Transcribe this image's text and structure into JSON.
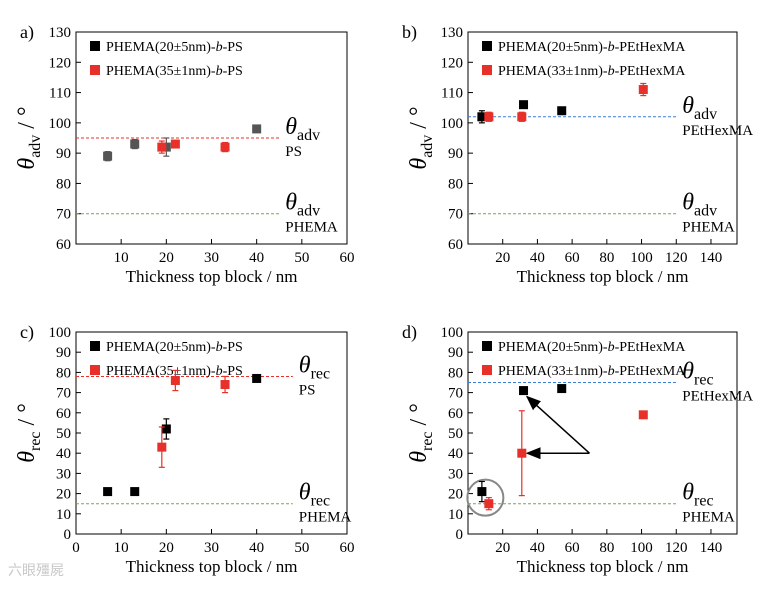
{
  "figure": {
    "watermark": "六眼殭屍"
  },
  "chart_data": [
    {
      "id": "a",
      "panel_label": "a)",
      "type": "scatter",
      "ylabel_symbol": "θ",
      "ylabel_sub": "adv",
      "ylabel_unit": "/ °",
      "xlabel": "Thickness top block / nm",
      "xlim": [
        0,
        60
      ],
      "ylim": [
        60,
        130
      ],
      "xticks": [
        10,
        20,
        30,
        40,
        50,
        60
      ],
      "yticks": [
        60,
        70,
        80,
        90,
        100,
        110,
        120,
        130
      ],
      "legend": [
        {
          "label_pre": "PHEMA(20±5nm)-",
          "label_ital": "b",
          "label_post": "-PS",
          "color": "#000000"
        },
        {
          "label_pre": "PHEMA(35±1nm)-",
          "label_ital": "b",
          "label_post": "-PS",
          "color": "#e8302a"
        }
      ],
      "series": [
        {
          "name": "PHEMA(20±5nm)-b-PS",
          "color": "#555555",
          "points": [
            {
              "x": 7,
              "y": 89,
              "err": 1.5
            },
            {
              "x": 13,
              "y": 93,
              "err": 1.5
            },
            {
              "x": 20,
              "y": 92,
              "err": 3
            },
            {
              "x": 40,
              "y": 98,
              "err": 0.8
            }
          ]
        },
        {
          "name": "PHEMA(35±1nm)-b-PS",
          "color": "#e8302a",
          "points": [
            {
              "x": 19,
              "y": 92,
              "err": 2
            },
            {
              "x": 22,
              "y": 93,
              "err": 1
            },
            {
              "x": 33,
              "y": 92,
              "err": 1.5
            }
          ]
        }
      ],
      "reference_lines": [
        {
          "y": 95,
          "color": "#e8302a",
          "x_end": 45,
          "label_symbol": "θ",
          "label_sub": "adv",
          "label_name": "PS"
        },
        {
          "y": 70,
          "color": "#6ab04c",
          "x_end": 45,
          "label_symbol": "θ",
          "label_sub": "adv",
          "label_name": "PHEMA"
        }
      ]
    },
    {
      "id": "b",
      "panel_label": "b)",
      "type": "scatter",
      "ylabel_symbol": "θ",
      "ylabel_sub": "adv",
      "ylabel_unit": "/ °",
      "xlabel": "Thickness top block / nm",
      "xlim": [
        0,
        155
      ],
      "ylim": [
        60,
        130
      ],
      "xticks": [
        20,
        40,
        60,
        80,
        100,
        120,
        140
      ],
      "yticks": [
        60,
        70,
        80,
        90,
        100,
        110,
        120,
        130
      ],
      "legend": [
        {
          "label_pre": "PHEMA(20±5nm)-",
          "label_ital": "b",
          "label_post": "-PEtHexMA",
          "color": "#000000"
        },
        {
          "label_pre": "PHEMA(33±1nm)-",
          "label_ital": "b",
          "label_post": "-PEtHexMA",
          "color": "#e8302a"
        }
      ],
      "series": [
        {
          "name": "PHEMA(20±5nm)-b-PEtHexMA",
          "color": "#000000",
          "points": [
            {
              "x": 8,
              "y": 102,
              "err": 2
            },
            {
              "x": 32,
              "y": 106,
              "err": 0
            },
            {
              "x": 54,
              "y": 104,
              "err": 0
            }
          ]
        },
        {
          "name": "PHEMA(33±1nm)-b-PEtHexMA",
          "color": "#e8302a",
          "points": [
            {
              "x": 12,
              "y": 102,
              "err": 1.5
            },
            {
              "x": 31,
              "y": 102,
              "err": 1.5
            },
            {
              "x": 101,
              "y": 111,
              "err": 2
            }
          ]
        }
      ],
      "reference_lines": [
        {
          "y": 102,
          "color": "#3a7fd5",
          "x_end": 120,
          "label_symbol": "θ",
          "label_sub": "adv",
          "label_name": "PEtHexMA"
        },
        {
          "y": 70,
          "color": "#6ab04c",
          "x_end": 120,
          "label_symbol": "θ",
          "label_sub": "adv",
          "label_name": "PHEMA"
        }
      ]
    },
    {
      "id": "c",
      "panel_label": "c)",
      "type": "scatter",
      "ylabel_symbol": "θ",
      "ylabel_sub": "rec",
      "ylabel_unit": "/ °",
      "xlabel": "Thickness top block / nm",
      "xlim": [
        0,
        60
      ],
      "ylim": [
        0,
        100
      ],
      "xticks": [
        0,
        10,
        20,
        30,
        40,
        50,
        60
      ],
      "yticks": [
        0,
        10,
        20,
        30,
        40,
        50,
        60,
        70,
        80,
        90,
        100
      ],
      "legend": [
        {
          "label_pre": "PHEMA(20±5nm)-",
          "label_ital": "b",
          "label_post": "-PS",
          "color": "#000000"
        },
        {
          "label_pre": "PHEMA(35±1nm)-",
          "label_ital": "b",
          "label_post": "-PS",
          "color": "#e8302a"
        }
      ],
      "series": [
        {
          "name": "PHEMA(20±5nm)-b-PS",
          "color": "#000000",
          "points": [
            {
              "x": 7,
              "y": 21,
              "err": 0
            },
            {
              "x": 13,
              "y": 21,
              "err": 0
            },
            {
              "x": 20,
              "y": 52,
              "err": 5
            },
            {
              "x": 40,
              "y": 77,
              "err": 1
            }
          ]
        },
        {
          "name": "PHEMA(35±1nm)-b-PS",
          "color": "#e8302a",
          "points": [
            {
              "x": 19,
              "y": 43,
              "err": 10
            },
            {
              "x": 22,
              "y": 76,
              "err": 5
            },
            {
              "x": 33,
              "y": 74,
              "err": 4
            }
          ]
        }
      ],
      "reference_lines": [
        {
          "y": 78,
          "color": "#e8302a",
          "x_end": 48,
          "label_symbol": "θ",
          "label_sub": "rec",
          "label_name": "PS"
        },
        {
          "y": 15,
          "color": "#6ab04c",
          "x_end": 48,
          "label_symbol": "θ",
          "label_sub": "rec",
          "label_name": "PHEMA"
        }
      ]
    },
    {
      "id": "d",
      "panel_label": "d)",
      "type": "scatter",
      "ylabel_symbol": "θ",
      "ylabel_sub": "rec",
      "ylabel_unit": "/ °",
      "xlabel": "Thickness top block / nm",
      "xlim": [
        0,
        155
      ],
      "ylim": [
        0,
        100
      ],
      "xticks": [
        20,
        40,
        60,
        80,
        100,
        120,
        140
      ],
      "yticks": [
        0,
        10,
        20,
        30,
        40,
        50,
        60,
        70,
        80,
        90,
        100
      ],
      "legend": [
        {
          "label_pre": "PHEMA(20±5nm)-",
          "label_ital": "b",
          "label_post": "-PEtHexMA",
          "color": "#000000"
        },
        {
          "label_pre": "PHEMA(33±1nm)-",
          "label_ital": "b",
          "label_post": "-PEtHexMA",
          "color": "#e8302a"
        }
      ],
      "series": [
        {
          "name": "PHEMA(20±5nm)-b-PEtHexMA",
          "color": "#000000",
          "points": [
            {
              "x": 8,
              "y": 21,
              "err": 5
            },
            {
              "x": 32,
              "y": 71,
              "err": 0
            },
            {
              "x": 54,
              "y": 72,
              "err": 0
            }
          ]
        },
        {
          "name": "PHEMA(33±1nm)-b-PEtHexMA",
          "color": "#e8302a",
          "points": [
            {
              "x": 12,
              "y": 15,
              "err": 3
            },
            {
              "x": 31,
              "y": 40,
              "err": 21
            },
            {
              "x": 101,
              "y": 59,
              "err": 0
            }
          ]
        }
      ],
      "reference_lines": [
        {
          "y": 75,
          "color": "#3a7fd5",
          "x_end": 120,
          "label_symbol": "θ",
          "label_sub": "rec",
          "label_name": "PEtHexMA"
        },
        {
          "y": 15,
          "color": "#6ab04c",
          "x_end": 120,
          "label_symbol": "θ",
          "label_sub": "rec",
          "label_name": "PHEMA"
        }
      ],
      "annotations": [
        {
          "type": "circle",
          "x": 10,
          "y": 18,
          "note": "grey circle around low-thickness points"
        },
        {
          "type": "arrows",
          "from_x": 70,
          "from_y": 40,
          "to": [
            {
              "x": 34,
              "y": 68
            },
            {
              "x": 34,
              "y": 40
            }
          ]
        }
      ]
    }
  ]
}
